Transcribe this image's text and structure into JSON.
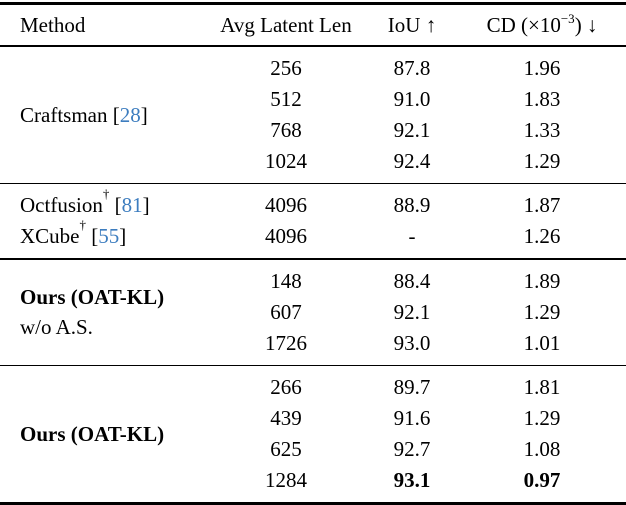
{
  "theme": {
    "citation_color": "#3d7dbf",
    "text_color": "#000000",
    "bg_color": "#ffffff"
  },
  "header": {
    "method": "Method",
    "avg_latent_len": "Avg Latent Len",
    "iou": "IoU ↑",
    "cd_base": "CD (×10",
    "cd_exp": "−3",
    "cd_end": ") ↓"
  },
  "groups": [
    {
      "method_name": "Craftsman",
      "cite_open": "[",
      "cite": "28",
      "cite_close": "]",
      "rows": [
        {
          "len": "256",
          "iou": "87.8",
          "cd": "1.96"
        },
        {
          "len": "512",
          "iou": "91.0",
          "cd": "1.83"
        },
        {
          "len": "768",
          "iou": "92.1",
          "cd": "1.33"
        },
        {
          "len": "1024",
          "iou": "92.4",
          "cd": "1.29"
        }
      ]
    },
    {
      "entries": [
        {
          "method_name": "Octfusion",
          "dagger": "†",
          "cite_open": "[",
          "cite": "81",
          "cite_close": "]",
          "len": "4096",
          "iou": "88.9",
          "cd": "1.87"
        },
        {
          "method_name": "XCube",
          "dagger": "†",
          "cite_open": "[",
          "cite": "55",
          "cite_close": "]",
          "len": "4096",
          "iou": "-",
          "cd": "1.26"
        }
      ]
    },
    {
      "method_line1": "Ours (OAT-KL)",
      "method_line2": "w/o A.S.",
      "rows": [
        {
          "len": "148",
          "iou": "88.4",
          "cd": "1.89"
        },
        {
          "len": "607",
          "iou": "92.1",
          "cd": "1.29"
        },
        {
          "len": "1726",
          "iou": "93.0",
          "cd": "1.01"
        }
      ]
    },
    {
      "method_line1": "Ours (OAT-KL)",
      "rows": [
        {
          "len": "266",
          "iou": "89.7",
          "cd": "1.81"
        },
        {
          "len": "439",
          "iou": "91.6",
          "cd": "1.29"
        },
        {
          "len": "625",
          "iou": "92.7",
          "cd": "1.08"
        },
        {
          "len": "1284",
          "iou": "93.1",
          "cd": "0.97"
        }
      ]
    }
  ]
}
